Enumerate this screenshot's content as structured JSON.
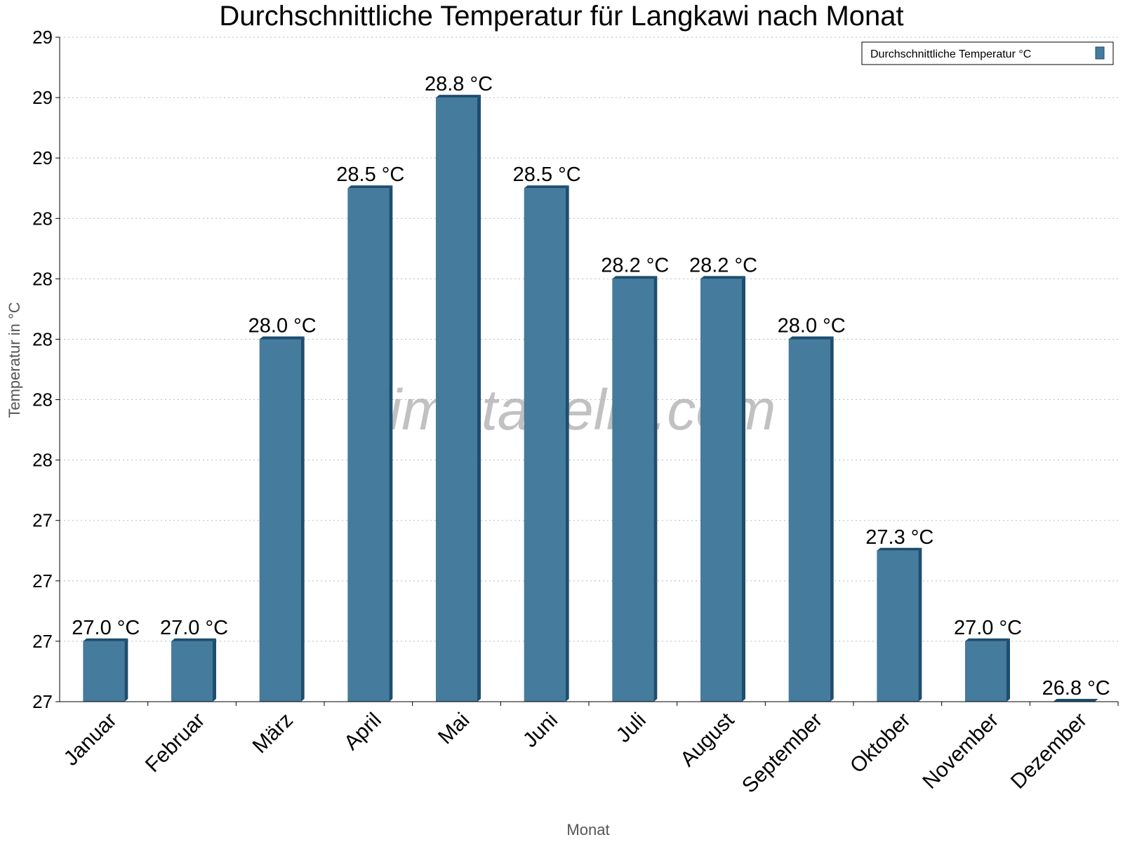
{
  "chart_data": {
    "type": "bar",
    "title": "Durchschnittliche Temperatur für Langkawi nach Monat",
    "xlabel": "Monat",
    "ylabel": "Temperatur in °C",
    "categories": [
      "Januar",
      "Februar",
      "März",
      "April",
      "Mai",
      "Juni",
      "Juli",
      "August",
      "September",
      "Oktober",
      "November",
      "Dezember"
    ],
    "series": [
      {
        "name": "Durchschnittliche Temperatur °C",
        "values": [
          27.0,
          27.0,
          28.0,
          28.5,
          28.8,
          28.5,
          28.2,
          28.2,
          28.0,
          27.3,
          27.0,
          26.8
        ]
      }
    ],
    "data_labels": [
      "27.0 °C",
      "27.0 °C",
      "28.0 °C",
      "28.5 °C",
      "28.8 °C",
      "28.5 °C",
      "28.2 °C",
      "28.2 °C",
      "28.0 °C",
      "27.3 °C",
      "27.0 °C",
      "26.8 °C"
    ],
    "ylim": [
      26.8,
      29.0
    ],
    "yticks": [
      26.8,
      27.0,
      27.2,
      27.4,
      27.6,
      27.8,
      28.0,
      28.2,
      28.4,
      28.6,
      28.8,
      29.0
    ],
    "ytick_labels": [
      "27",
      "27",
      "27",
      "27",
      "28",
      "28",
      "28",
      "28",
      "28",
      "29",
      "29",
      "29"
    ],
    "grid": true,
    "legend_position": "top-right",
    "watermark": "klimatabelle.com",
    "colors": {
      "bar": "#457b9d",
      "bar_side": "#1d4e6f",
      "grid": "#bbbbbb"
    }
  }
}
